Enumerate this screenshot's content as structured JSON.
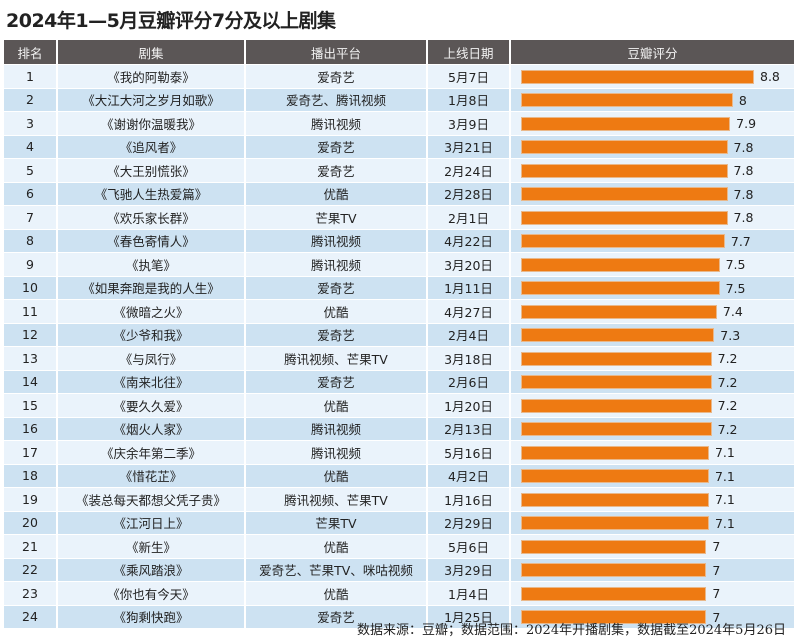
{
  "title": "2024年1—5月豆瓣评分7分及以上剧集",
  "footnote": "数据来源：豆瓣；数据范围：2024年开播剧集，数据截至2024年5月26日",
  "chart_data": {
    "type": "bar",
    "orientation": "horizontal",
    "title": "2024年1—5月豆瓣评分7分及以上剧集",
    "columns": [
      "排名",
      "剧集",
      "播出平台",
      "上线日期",
      "豆瓣评分"
    ],
    "bar_color": "#ee7a12",
    "rows": [
      {
        "rank": "1",
        "name": "《我的阿勒泰》",
        "platform": "爱奇艺",
        "date": "5月7日",
        "score": 8.8
      },
      {
        "rank": "2",
        "name": "《大江大河之岁月如歌》",
        "platform": "爱奇艺、腾讯视频",
        "date": "1月8日",
        "score": 8
      },
      {
        "rank": "3",
        "name": "《谢谢你温暖我》",
        "platform": "腾讯视频",
        "date": "3月9日",
        "score": 7.9
      },
      {
        "rank": "4",
        "name": "《追风者》",
        "platform": "爱奇艺",
        "date": "3月21日",
        "score": 7.8
      },
      {
        "rank": "5",
        "name": "《大王别慌张》",
        "platform": "爱奇艺",
        "date": "2月24日",
        "score": 7.8
      },
      {
        "rank": "6",
        "name": "《飞驰人生热爱篇》",
        "platform": "优酷",
        "date": "2月28日",
        "score": 7.8
      },
      {
        "rank": "7",
        "name": "《欢乐家长群》",
        "platform": "芒果TV",
        "date": "2月1日",
        "score": 7.8
      },
      {
        "rank": "8",
        "name": "《春色寄情人》",
        "platform": "腾讯视频",
        "date": "4月22日",
        "score": 7.7
      },
      {
        "rank": "9",
        "name": "《执笔》",
        "platform": "腾讯视频",
        "date": "3月20日",
        "score": 7.5
      },
      {
        "rank": "10",
        "name": "《如果奔跑是我的人生》",
        "platform": "爱奇艺",
        "date": "1月11日",
        "score": 7.5
      },
      {
        "rank": "11",
        "name": "《微暗之火》",
        "platform": "优酷",
        "date": "4月27日",
        "score": 7.4
      },
      {
        "rank": "12",
        "name": "《少爷和我》",
        "platform": "爱奇艺",
        "date": "2月4日",
        "score": 7.3
      },
      {
        "rank": "13",
        "name": "《与凤行》",
        "platform": "腾讯视频、芒果TV",
        "date": "3月18日",
        "score": 7.2
      },
      {
        "rank": "14",
        "name": "《南来北往》",
        "platform": "爱奇艺",
        "date": "2月6日",
        "score": 7.2
      },
      {
        "rank": "15",
        "name": "《要久久爱》",
        "platform": "优酷",
        "date": "1月20日",
        "score": 7.2
      },
      {
        "rank": "16",
        "name": "《烟火人家》",
        "platform": "腾讯视频",
        "date": "2月13日",
        "score": 7.2
      },
      {
        "rank": "17",
        "name": "《庆余年第二季》",
        "platform": "腾讯视频",
        "date": "5月16日",
        "score": 7.1
      },
      {
        "rank": "18",
        "name": "《惜花芷》",
        "platform": "优酷",
        "date": "4月2日",
        "score": 7.1
      },
      {
        "rank": "19",
        "name": "《装总每天都想父凭子贵》",
        "platform": "腾讯视频、芒果TV",
        "date": "1月16日",
        "score": 7.1
      },
      {
        "rank": "20",
        "name": "《江河日上》",
        "platform": "芒果TV",
        "date": "2月29日",
        "score": 7.1
      },
      {
        "rank": "21",
        "name": "《新生》",
        "platform": "优酷",
        "date": "5月6日",
        "score": 7
      },
      {
        "rank": "22",
        "name": "《乘风踏浪》",
        "platform": "爱奇艺、芒果TV、咪咕视频",
        "date": "3月29日",
        "score": 7
      },
      {
        "rank": "23",
        "name": "《你也有今天》",
        "platform": "优酷",
        "date": "1月4日",
        "score": 7
      },
      {
        "rank": "24",
        "name": "《狗剩快跑》",
        "platform": "爱奇艺",
        "date": "1月25日",
        "score": 7
      }
    ]
  }
}
